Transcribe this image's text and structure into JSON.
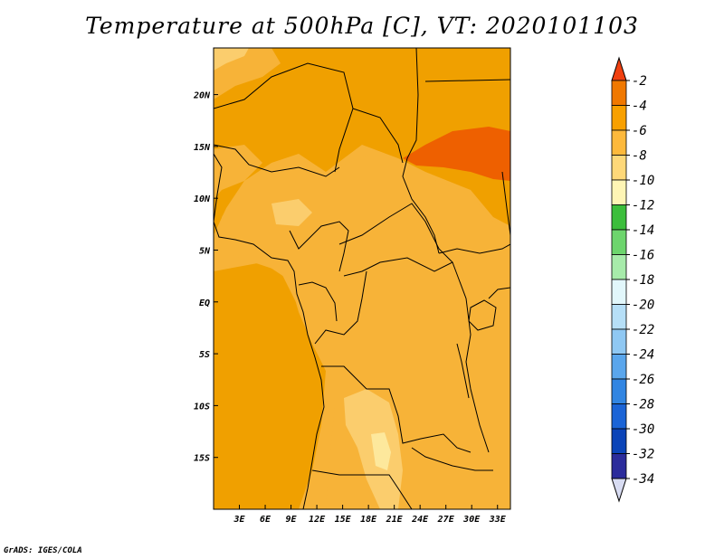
{
  "title": "Temperature at 500hPa [C], VT: 2020101103",
  "credit": "GrADS: IGES/COLA",
  "map": {
    "lon_range": [
      0,
      34.5
    ],
    "lat_range": [
      -20,
      24.5
    ],
    "lon_ticks": [
      {
        "value": 3,
        "label": "3E"
      },
      {
        "value": 6,
        "label": "6E"
      },
      {
        "value": 9,
        "label": "9E"
      },
      {
        "value": 12,
        "label": "12E"
      },
      {
        "value": 15,
        "label": "15E"
      },
      {
        "value": 18,
        "label": "18E"
      },
      {
        "value": 21,
        "label": "21E"
      },
      {
        "value": 24,
        "label": "24E"
      },
      {
        "value": 27,
        "label": "27E"
      },
      {
        "value": 30,
        "label": "30E"
      },
      {
        "value": 33,
        "label": "33E"
      }
    ],
    "lat_ticks": [
      {
        "value": 20,
        "label": "20N"
      },
      {
        "value": 15,
        "label": "15N"
      },
      {
        "value": 10,
        "label": "10N"
      },
      {
        "value": 5,
        "label": "5N"
      },
      {
        "value": 0,
        "label": "EQ"
      },
      {
        "value": -5,
        "label": "5S"
      },
      {
        "value": -10,
        "label": "10S"
      },
      {
        "value": -15,
        "label": "15S"
      }
    ]
  },
  "colorbar": {
    "labels": [
      "-2",
      "-4",
      "-6",
      "-8",
      "-10",
      "-12",
      "-14",
      "-16",
      "-18",
      "-20",
      "-22",
      "-24",
      "-26",
      "-28",
      "-30",
      "-32",
      "-34"
    ],
    "colors": [
      "#ee4a00",
      "#f07800",
      "#f8a000",
      "#fdb93c",
      "#fed879",
      "#fef5b5",
      "#3cbe3c",
      "#6dd56d",
      "#a7ebaa",
      "#e2f7fb",
      "#b6dff7",
      "#8fc8f3",
      "#5aa6ec",
      "#3185e2",
      "#1b64d6",
      "#0b44b8",
      "#2b2c9b"
    ],
    "top_arrow_color": "#f04010",
    "bottom_arrow_color": "#d8dcf2"
  },
  "field_colors": {
    "t_m4": "#f0a000",
    "t_m6": "#f7b338",
    "t_m8": "#fbcd6d",
    "t_m10": "#fde89c",
    "t_m2": "#ee6000"
  }
}
